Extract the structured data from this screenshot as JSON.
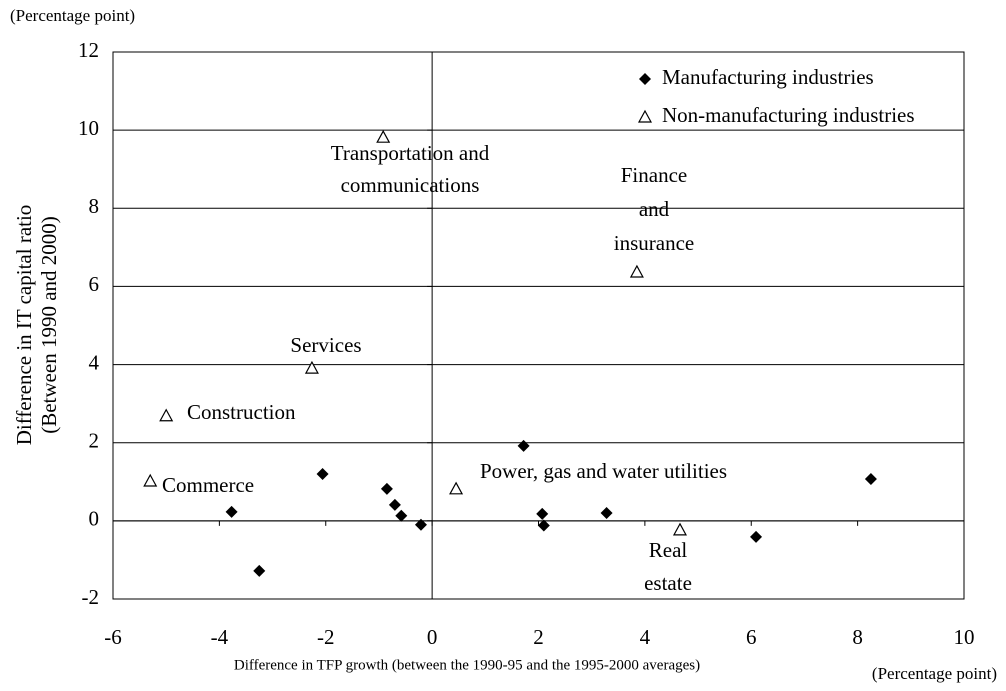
{
  "chart_data": {
    "type": "scatter",
    "unit_top": "(Percentage point)",
    "unit_bottom": "(Percentage point)",
    "y_label": [
      "Difference in IT capital ratio",
      "(Between 1990 and 2000)"
    ],
    "x_label": "Difference in TFP growth (between the 1990-95 and the 1995-2000 averages)",
    "xlim": [
      -6,
      10
    ],
    "xticks": [
      -6,
      -4,
      -2,
      0,
      2,
      4,
      6,
      8,
      10
    ],
    "ylim": [
      -2,
      12
    ],
    "yticks": [
      -2,
      0,
      2,
      4,
      6,
      8,
      10,
      12
    ],
    "grid": true,
    "series": [
      {
        "name": "Manufacturing industries",
        "marker": "diamond",
        "color": "#000000",
        "x": [
          -3.77,
          -3.25,
          -2.06,
          -0.85,
          -0.7,
          -0.58,
          -0.21,
          1.72,
          2.07,
          2.1,
          3.28,
          6.09,
          8.25
        ],
        "values": [
          0.23,
          -1.28,
          1.2,
          0.82,
          0.41,
          0.13,
          -0.1,
          1.92,
          0.18,
          -0.12,
          0.2,
          -0.41,
          1.07
        ]
      },
      {
        "name": "Non-manufacturing industries",
        "marker": "triangle",
        "color": "#000000",
        "x": [
          -0.92,
          3.85,
          -2.26,
          -5.0,
          -5.3,
          0.45,
          4.66
        ],
        "values": [
          9.82,
          6.37,
          3.91,
          2.69,
          1.02,
          0.82,
          -0.23
        ]
      }
    ],
    "annotations": [
      [
        "Transportation and",
        "communications"
      ],
      [
        "Finance",
        "and",
        "insurance"
      ],
      [
        "Services"
      ],
      [
        "Construction"
      ],
      [
        "Commerce"
      ],
      [
        "Power, gas and water utilities"
      ],
      [
        "Real",
        "estate"
      ]
    ]
  }
}
